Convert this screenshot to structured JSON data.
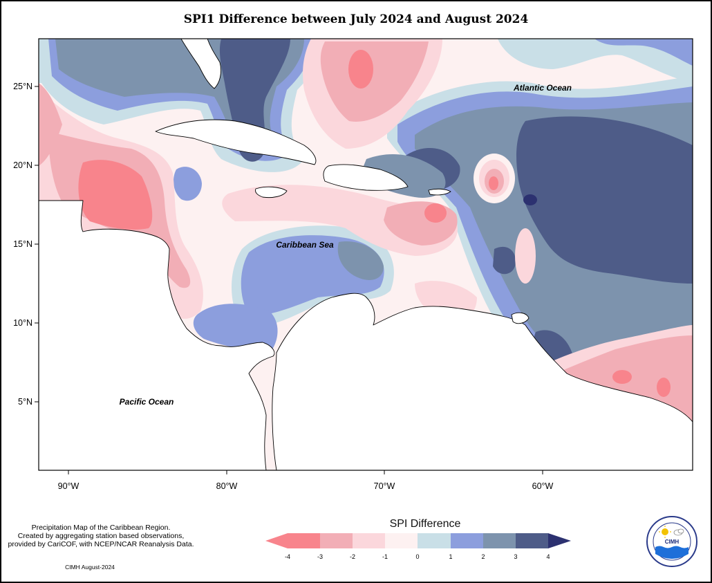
{
  "title": "SPI1 Difference between July 2024 and August 2024",
  "map": {
    "region": "Caribbean",
    "lon_range": [
      -92,
      -59
    ],
    "lat_range": [
      1,
      28
    ],
    "lon_ticks": [
      "90°W",
      "80°W",
      "70°W",
      "60°W"
    ],
    "lat_ticks": [
      "25°N",
      "20°N",
      "15°N",
      "10°N",
      "5°N"
    ],
    "labels": {
      "atlantic": "Atlantic Ocean",
      "caribbean": "Caribbean Sea",
      "pacific": "Pacific Ocean"
    }
  },
  "legend": {
    "title": "SPI Difference",
    "ticks": [
      "-4",
      "-3",
      "-2",
      "-1",
      "0",
      "1",
      "2",
      "3",
      "4"
    ],
    "colors": [
      "#f8848c",
      "#f2aeb6",
      "#fbd7dc",
      "#fdf1f1",
      "#c9dfe7",
      "#8c9edd",
      "#7d93ad",
      "#4e5c88",
      "#2c3170"
    ]
  },
  "notes": {
    "line1": "Precipitation Map of the Caribbean Region.",
    "line2": "Created by aggregating station based observations,",
    "line3": "provided by CariCOF, with NCEP/NCAR Reanalysis Data.",
    "credit": "CIMH August-2024"
  },
  "logo": {
    "text": "CIMH",
    "ring_text": "Caribbean Institute for Meteorology and Hydrology"
  }
}
